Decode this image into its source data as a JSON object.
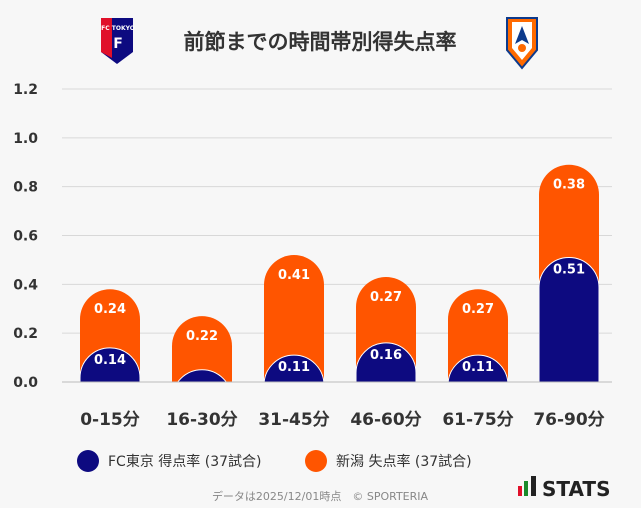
{
  "chart_data": {
    "type": "bar",
    "stacked": true,
    "title": "前節までの時間帯別得失点率",
    "categories": [
      "0-15分",
      "16-30分",
      "31-45分",
      "46-60分",
      "61-75分",
      "76-90分"
    ],
    "series": [
      {
        "name": "FC東京 得点率 (37試合)",
        "color": "#0d0a80",
        "values": [
          0.14,
          0.05,
          0.11,
          0.16,
          0.11,
          0.51
        ],
        "labels": [
          "0.14",
          "",
          "0.11",
          "0.16",
          "0.11",
          "0.51"
        ]
      },
      {
        "name": "新潟 失点率 (37試合)",
        "color": "#ff5500",
        "values": [
          0.24,
          0.22,
          0.41,
          0.27,
          0.27,
          0.38
        ],
        "labels": [
          "0.24",
          "0.22",
          "0.41",
          "0.27",
          "0.27",
          "0.38"
        ]
      }
    ],
    "yticks": [
      "0.0",
      "0.2",
      "0.4",
      "0.6",
      "0.8",
      "1.0",
      "1.2"
    ],
    "ylim": [
      0,
      1.2
    ],
    "grid": true,
    "legend_position": "bottom-left"
  },
  "header": {
    "left_logo_text": "FC TOKYO",
    "right_logo_name": "albirex-niigata-logo"
  },
  "footer": {
    "credit": "データは2025/12/01時点　© SPORTERIA",
    "brand": "STATS"
  }
}
